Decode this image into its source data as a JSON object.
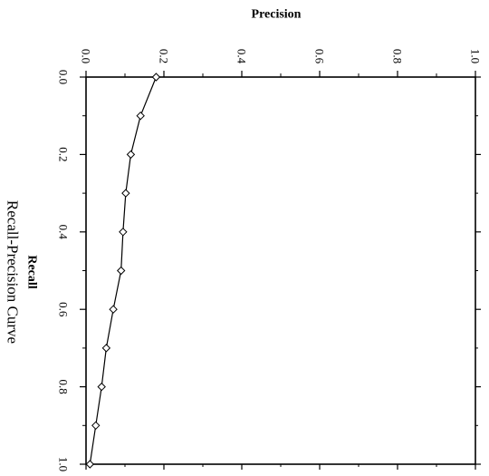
{
  "chart_data": {
    "type": "line",
    "title": "Recall-Precision Curve",
    "xlabel": "Recall",
    "ylabel": "Precision",
    "xlim": [
      0,
      1
    ],
    "ylim": [
      0,
      1
    ],
    "grid": false,
    "orientation": "rotated 90 degrees clockwise",
    "x_ticks": [
      "0.0",
      "0.2",
      "0.4",
      "0.6",
      "0.8",
      "1.0"
    ],
    "y_ticks": [
      "0.0",
      "0.2",
      "0.4",
      "0.6",
      "0.8",
      "1.0"
    ],
    "series": [
      {
        "marker": "diamond",
        "x": [
          0.0,
          0.1,
          0.2,
          0.3,
          0.4,
          0.5,
          0.6,
          0.7,
          0.8,
          0.9,
          1.0
        ],
        "y": [
          0.18,
          0.14,
          0.115,
          0.102,
          0.095,
          0.09,
          0.07,
          0.052,
          0.04,
          0.025,
          0.01
        ]
      }
    ]
  }
}
